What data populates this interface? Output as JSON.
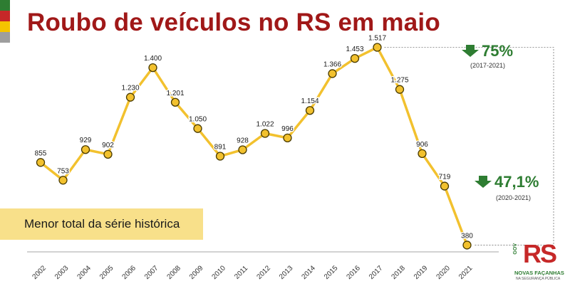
{
  "header": {
    "title": "Roubo de veículos no RS em maio"
  },
  "chart_data": {
    "type": "line",
    "title": "Roubo de veículos no RS em maio",
    "xlabel": "",
    "ylabel": "",
    "categories": [
      "2002",
      "2003",
      "2004",
      "2005",
      "2006",
      "2007",
      "2008",
      "2009",
      "2010",
      "2011",
      "2012",
      "2013",
      "2014",
      "2015",
      "2016",
      "2017",
      "2018",
      "2019",
      "2020",
      "2021"
    ],
    "values": [
      855,
      753,
      929,
      902,
      1230,
      1400,
      1201,
      1050,
      891,
      928,
      1022,
      996,
      1154,
      1366,
      1453,
      1517,
      1275,
      906,
      719,
      380
    ],
    "value_labels": [
      "855",
      "753",
      "929",
      "902",
      "1.230",
      "1.400",
      "1.201",
      "1.050",
      "891",
      "928",
      "1.022",
      "996",
      "1.154",
      "1.366",
      "1.453",
      "1.517",
      "1.275",
      "906",
      "719",
      "380"
    ],
    "ylim": [
      300,
      1560
    ],
    "grid": false,
    "colors": {
      "line": "#f2c12e",
      "marker_fill": "#f2c12e",
      "marker_stroke": "#4a3b00",
      "down_arrow": "#2e7d32",
      "pct_text": "#2e7d32"
    },
    "annotations": [
      {
        "pct": "75%",
        "period": "(2017-2021)"
      },
      {
        "pct": "47,1%",
        "period": "(2020-2021)"
      }
    ]
  },
  "callout": {
    "text": "Menor total da série histórica"
  },
  "logo": {
    "brand": "RS",
    "side_text": "GOV",
    "tagline": "NOVAS FAÇANHAS",
    "subtitle": "NA SEGURANÇA PÚBLICA"
  }
}
